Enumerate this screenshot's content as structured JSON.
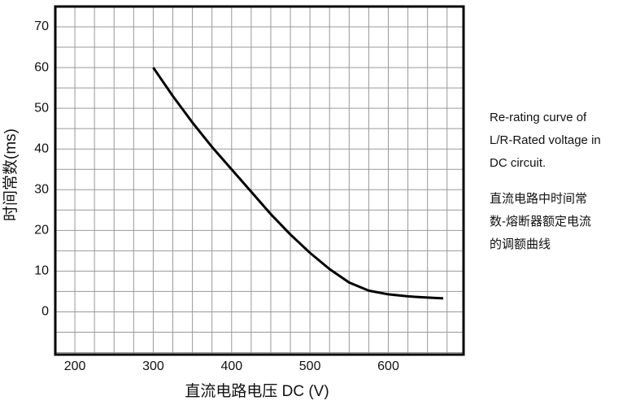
{
  "chart_data": {
    "type": "line",
    "x_label": "直流电路电压 DC (V)",
    "y_label": "时间常数(ms)",
    "annotations": [
      "Re-rating curve of",
      "L/R-Rated voltage in",
      "DC circuit.",
      "直流电路中时间常",
      "数-熔断器额定电流",
      "的调额曲线"
    ],
    "x": [
      300,
      325,
      350,
      375,
      400,
      425,
      450,
      475,
      500,
      525,
      550,
      575,
      600,
      625,
      650,
      670
    ],
    "series": [
      {
        "color": "#000000",
        "values": [
          60,
          53,
          46.5,
          40.5,
          35,
          29.5,
          24,
          19,
          14.5,
          10.5,
          7.2,
          5.2,
          4.3,
          3.8,
          3.5,
          3.3
        ]
      }
    ],
    "xlim": [
      175,
      696
    ],
    "ylim": [
      -10.5,
      75
    ],
    "xticks": [
      200,
      300,
      400,
      500,
      600
    ],
    "yticks": [
      0,
      10,
      20,
      30,
      40,
      50,
      60,
      70
    ],
    "xgrid": [
      200,
      225,
      250,
      275,
      300,
      325,
      350,
      375,
      400,
      425,
      450,
      475,
      500,
      525,
      550,
      575,
      600,
      625,
      650,
      675
    ],
    "ygrid": [
      -10,
      -5,
      0,
      5,
      10,
      15,
      20,
      25,
      30,
      35,
      40,
      45,
      50,
      55,
      60,
      65,
      70
    ],
    "grid": true
  }
}
